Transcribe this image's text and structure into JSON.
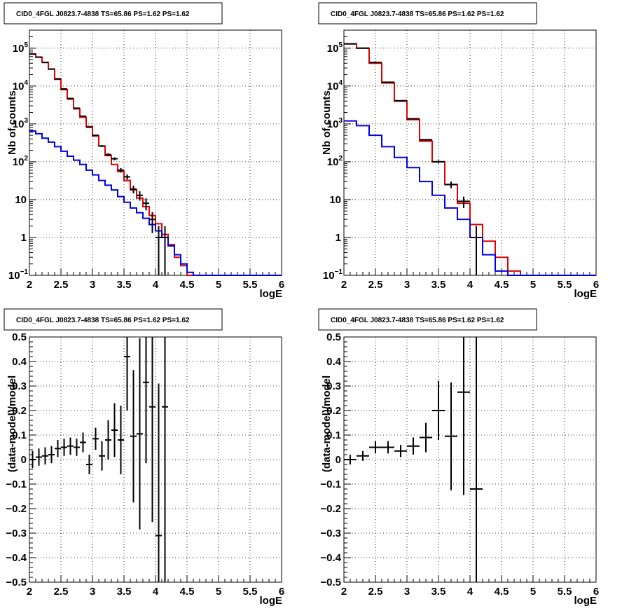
{
  "colors": {
    "data": "#000000",
    "total_model": "#e00000",
    "source_model": "#0000e0",
    "grid": "#000000"
  },
  "chart_data": [
    {
      "type": "line",
      "title": "CID0_4FGL J0823.7-4838 TS=65.86 PS=1.62 PS=1.62",
      "xlabel": "logE",
      "ylabel": "Nb of counts",
      "log_y": true,
      "grid": true,
      "xlim": [
        2,
        6
      ],
      "ylim": [
        0.1,
        300000
      ],
      "x_ticks": [
        "2",
        "2.5",
        "3",
        "3.5",
        "4",
        "4.5",
        "5",
        "5.5",
        "6"
      ],
      "y_ticks": [
        {
          "value": 0.1,
          "base": "10",
          "exp": "−1"
        },
        {
          "value": 1,
          "base": "1",
          "exp": ""
        },
        {
          "value": 10,
          "base": "10",
          "exp": ""
        },
        {
          "value": 100,
          "base": "10",
          "exp": "2"
        },
        {
          "value": 1000,
          "base": "10",
          "exp": "3"
        },
        {
          "value": 10000,
          "base": "10",
          "exp": "4"
        },
        {
          "value": 100000,
          "base": "10",
          "exp": "5"
        }
      ],
      "bin_edges": [
        2.0,
        2.1,
        2.2,
        2.3,
        2.4,
        2.5,
        2.6,
        2.7,
        2.8,
        2.9,
        3.0,
        3.1,
        3.2,
        3.3,
        3.4,
        3.5,
        3.6,
        3.7,
        3.8,
        3.9,
        4.0,
        4.1,
        4.2,
        4.3,
        4.4,
        4.5,
        4.6,
        4.7,
        4.8,
        4.9,
        5.0,
        5.1,
        5.2,
        5.3,
        5.4,
        5.5,
        5.6,
        5.7,
        5.8,
        5.9,
        6.0
      ],
      "series": [
        {
          "kind": "step",
          "color_key": "total_model",
          "values": [
            70000,
            58000,
            42000,
            28000,
            15000,
            8000,
            4500,
            2500,
            1500,
            850,
            480,
            260,
            145,
            85,
            55,
            32,
            18,
            11,
            6.5,
            3.8,
            2.3,
            1.2,
            0.65,
            0.3,
            0.18,
            0.1,
            0.1,
            0.1,
            0.1,
            0.1,
            0.1,
            0.1,
            0.1,
            0.1,
            0.1,
            0.1,
            0.1,
            0.1,
            0.1,
            0.1
          ]
        },
        {
          "kind": "step",
          "color_key": "source_model",
          "values": [
            650,
            550,
            420,
            330,
            250,
            190,
            140,
            110,
            85,
            60,
            45,
            32,
            24,
            18,
            12,
            8.5,
            6,
            4.5,
            3.2,
            2.2,
            1.5,
            1.0,
            0.6,
            0.35,
            0.2,
            0.12,
            0.1,
            0.1,
            0.1,
            0.1,
            0.1,
            0.1,
            0.1,
            0.1,
            0.1,
            0.1,
            0.1,
            0.1,
            0.1,
            0.1
          ]
        },
        {
          "kind": "points",
          "color_key": "data",
          "x": [
            2.05,
            2.15,
            2.25,
            2.35,
            2.45,
            2.55,
            2.65,
            2.75,
            2.85,
            2.95,
            3.05,
            3.15,
            3.25,
            3.35,
            3.45,
            3.55,
            3.65,
            3.75,
            3.85,
            3.95,
            4.05,
            4.15,
            4.25
          ],
          "y": [
            70000,
            58000,
            42000,
            28000,
            15500,
            8400,
            4700,
            2600,
            1600,
            820,
            500,
            260,
            155,
            120,
            60,
            40,
            19,
            13,
            8,
            3,
            1,
            1,
            0
          ],
          "yerr": [
            265,
            241,
            205,
            167,
            124,
            92,
            69,
            51,
            40,
            29,
            22,
            16,
            12,
            11,
            8,
            6.3,
            4.4,
            3.6,
            2.8,
            1.7,
            1,
            1,
            0
          ]
        }
      ]
    },
    {
      "type": "line",
      "title": "CID0_4FGL J0823.7-4838 TS=65.86 PS=1.62 PS=1.62",
      "xlabel": "logE",
      "ylabel": "Nb of counts",
      "log_y": true,
      "grid": true,
      "xlim": [
        2,
        6
      ],
      "ylim": [
        0.1,
        300000
      ],
      "x_ticks": [
        "2",
        "2.5",
        "3",
        "3.5",
        "4",
        "4.5",
        "5",
        "5.5",
        "6"
      ],
      "y_ticks": [
        {
          "value": 0.1,
          "base": "10",
          "exp": "−1"
        },
        {
          "value": 1,
          "base": "1",
          "exp": ""
        },
        {
          "value": 10,
          "base": "10",
          "exp": ""
        },
        {
          "value": 100,
          "base": "10",
          "exp": "2"
        },
        {
          "value": 1000,
          "base": "10",
          "exp": "3"
        },
        {
          "value": 10000,
          "base": "10",
          "exp": "4"
        },
        {
          "value": 100000,
          "base": "10",
          "exp": "5"
        }
      ],
      "bin_edges": [
        2.0,
        2.2,
        2.4,
        2.6,
        2.8,
        3.0,
        3.2,
        3.4,
        3.6,
        3.8,
        4.0,
        4.2,
        4.4,
        4.6,
        4.8,
        5.0,
        5.2,
        5.4,
        5.6,
        5.8,
        6.0
      ],
      "series": [
        {
          "kind": "step",
          "color_key": "total_model",
          "values": [
            130000,
            100000,
            40000,
            12000,
            4000,
            1300,
            350,
            100,
            25,
            8,
            2.2,
            0.8,
            0.3,
            0.13,
            0.1,
            0.1,
            0.1,
            0.1,
            0.1,
            0.1
          ]
        },
        {
          "kind": "step",
          "color_key": "source_model",
          "values": [
            1200,
            900,
            500,
            250,
            130,
            70,
            30,
            13,
            6,
            3,
            1,
            0.35,
            0.13,
            0.1,
            0.1,
            0.1,
            0.1,
            0.1,
            0.1,
            0.1
          ]
        },
        {
          "kind": "points",
          "color_key": "data",
          "x": [
            2.1,
            2.3,
            2.5,
            2.7,
            2.9,
            3.1,
            3.3,
            3.5,
            3.7,
            3.9,
            4.1
          ],
          "y": [
            130000,
            100000,
            42000,
            12600,
            4100,
            1370,
            380,
            100,
            25,
            9,
            1
          ],
          "yerr": [
            361,
            316,
            205,
            112,
            64,
            37,
            19,
            10,
            5,
            3,
            1
          ]
        }
      ]
    },
    {
      "type": "scatter",
      "title": "CID0_4FGL J0823.7-4838 TS=65.86 PS=1.62 PS=1.62",
      "xlabel": "logE",
      "ylabel": "(data-model)/model",
      "log_y": false,
      "grid": true,
      "xlim": [
        2,
        6
      ],
      "ylim": [
        -0.5,
        0.5
      ],
      "x_ticks": [
        "2",
        "2.5",
        "3",
        "3.5",
        "4",
        "4.5",
        "5",
        "5.5",
        "6"
      ],
      "y_ticks": [
        {
          "value": -0.5,
          "label": "−0.5"
        },
        {
          "value": -0.4,
          "label": "−0.4"
        },
        {
          "value": -0.3,
          "label": "−0.3"
        },
        {
          "value": -0.2,
          "label": "−0.2"
        },
        {
          "value": -0.1,
          "label": "−0.1"
        },
        {
          "value": 0,
          "label": "0"
        },
        {
          "value": 0.1,
          "label": "0.1"
        },
        {
          "value": 0.2,
          "label": "0.2"
        },
        {
          "value": 0.3,
          "label": "0.3"
        },
        {
          "value": 0.4,
          "label": "0.4"
        },
        {
          "value": 0.5,
          "label": "0.5"
        }
      ],
      "xhalf": 0.05,
      "series": [
        {
          "kind": "points",
          "color_key": "data",
          "x": [
            2.05,
            2.15,
            2.25,
            2.35,
            2.45,
            2.55,
            2.65,
            2.75,
            2.85,
            2.95,
            3.05,
            3.15,
            3.25,
            3.35,
            3.45,
            3.55,
            3.65,
            3.75,
            3.85,
            3.95,
            4.05,
            4.15
          ],
          "y": [
            0.0,
            0.01,
            0.015,
            0.02,
            0.045,
            0.05,
            0.055,
            0.05,
            0.07,
            -0.02,
            0.085,
            0.015,
            0.08,
            0.12,
            0.08,
            0.42,
            0.095,
            0.105,
            0.315,
            0.215,
            -0.31,
            0.215
          ],
          "yerr": [
            0.035,
            0.035,
            0.035,
            0.035,
            0.035,
            0.035,
            0.035,
            0.035,
            0.04,
            0.04,
            0.045,
            0.06,
            0.08,
            0.11,
            0.14,
            0.22,
            0.27,
            0.39,
            0.33,
            0.47,
            0.62,
            0.72
          ]
        }
      ]
    },
    {
      "type": "scatter",
      "title": "CID0_4FGL J0823.7-4838 TS=65.86 PS=1.62 PS=1.62",
      "xlabel": "logE",
      "ylabel": "(data-model)/model",
      "log_y": false,
      "grid": true,
      "xlim": [
        2,
        6
      ],
      "ylim": [
        -0.5,
        0.5
      ],
      "x_ticks": [
        "2",
        "2.5",
        "3",
        "3.5",
        "4",
        "4.5",
        "5",
        "5.5",
        "6"
      ],
      "y_ticks": [
        {
          "value": -0.5,
          "label": "−0.5"
        },
        {
          "value": -0.4,
          "label": "−0.4"
        },
        {
          "value": -0.3,
          "label": "−0.3"
        },
        {
          "value": -0.2,
          "label": "−0.2"
        },
        {
          "value": -0.1,
          "label": "−0.1"
        },
        {
          "value": 0,
          "label": "0"
        },
        {
          "value": 0.1,
          "label": "0.1"
        },
        {
          "value": 0.2,
          "label": "0.2"
        },
        {
          "value": 0.3,
          "label": "0.3"
        },
        {
          "value": 0.4,
          "label": "0.4"
        },
        {
          "value": 0.5,
          "label": "0.5"
        }
      ],
      "xhalf": 0.1,
      "series": [
        {
          "kind": "points",
          "color_key": "data",
          "x": [
            2.1,
            2.3,
            2.5,
            2.7,
            2.9,
            3.1,
            3.3,
            3.5,
            3.7,
            3.9,
            4.1
          ],
          "y": [
            0.0,
            0.015,
            0.05,
            0.05,
            0.035,
            0.055,
            0.09,
            0.2,
            0.095,
            0.275,
            -0.12
          ],
          "yerr": [
            0.02,
            0.02,
            0.025,
            0.025,
            0.025,
            0.035,
            0.06,
            0.12,
            0.22,
            0.42,
            0.8
          ]
        }
      ]
    }
  ]
}
